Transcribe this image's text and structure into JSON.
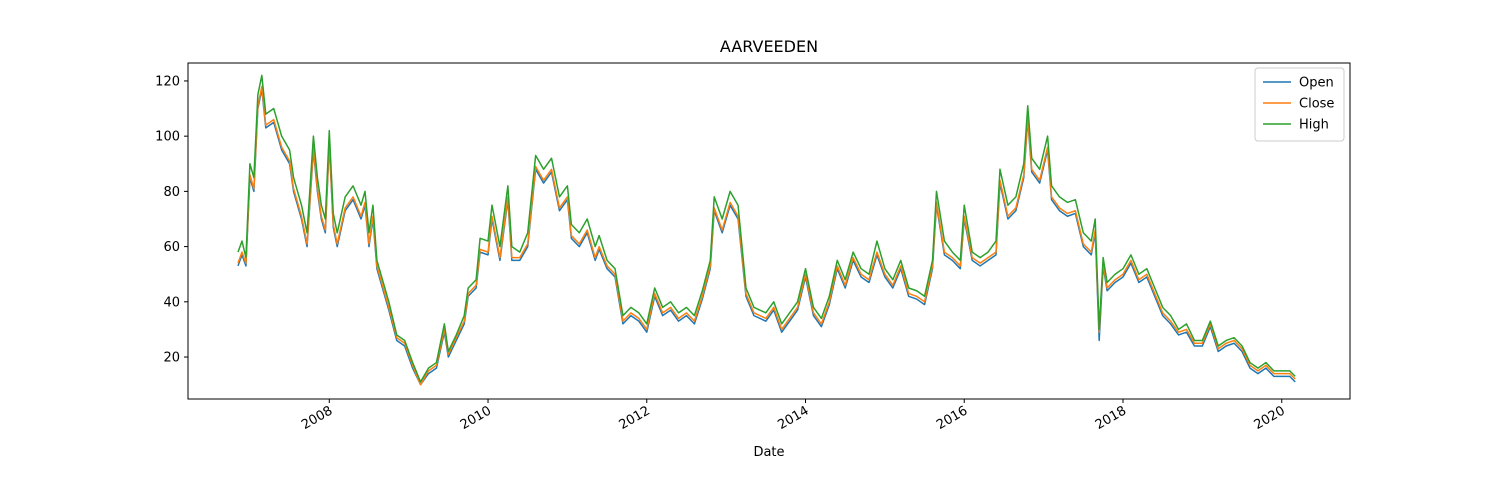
{
  "chart_data": {
    "type": "line",
    "title": "AARVEEDEN",
    "x_label": "Date",
    "x": [
      2006.85,
      2006.9,
      2006.95,
      2007.0,
      2007.05,
      2007.1,
      2007.15,
      2007.2,
      2007.3,
      2007.4,
      2007.5,
      2007.55,
      2007.65,
      2007.72,
      2007.8,
      2007.85,
      2007.9,
      2007.95,
      2008.0,
      2008.05,
      2008.1,
      2008.2,
      2008.3,
      2008.4,
      2008.45,
      2008.5,
      2008.55,
      2008.6,
      2008.65,
      2008.75,
      2008.85,
      2008.95,
      2009.05,
      2009.15,
      2009.25,
      2009.35,
      2009.45,
      2009.5,
      2009.6,
      2009.7,
      2009.75,
      2009.85,
      2009.9,
      2010.0,
      2010.05,
      2010.15,
      2010.25,
      2010.3,
      2010.4,
      2010.5,
      2010.6,
      2010.7,
      2010.8,
      2010.9,
      2011.0,
      2011.05,
      2011.15,
      2011.25,
      2011.35,
      2011.4,
      2011.5,
      2011.6,
      2011.7,
      2011.8,
      2011.9,
      2012.0,
      2012.1,
      2012.2,
      2012.3,
      2012.4,
      2012.5,
      2012.6,
      2012.7,
      2012.8,
      2012.85,
      2012.95,
      2013.05,
      2013.15,
      2013.25,
      2013.35,
      2013.5,
      2013.6,
      2013.7,
      2013.8,
      2013.9,
      2014.0,
      2014.1,
      2014.2,
      2014.3,
      2014.4,
      2014.5,
      2014.6,
      2014.7,
      2014.8,
      2014.9,
      2015.0,
      2015.1,
      2015.2,
      2015.3,
      2015.4,
      2015.5,
      2015.6,
      2015.65,
      2015.75,
      2015.85,
      2015.95,
      2016.0,
      2016.1,
      2016.2,
      2016.3,
      2016.4,
      2016.45,
      2016.55,
      2016.65,
      2016.75,
      2016.8,
      2016.85,
      2016.95,
      2017.05,
      2017.1,
      2017.2,
      2017.3,
      2017.4,
      2017.5,
      2017.6,
      2017.65,
      2017.7,
      2017.75,
      2017.8,
      2017.9,
      2018.0,
      2018.1,
      2018.2,
      2018.3,
      2018.4,
      2018.5,
      2018.6,
      2018.7,
      2018.8,
      2018.9,
      2019.0,
      2019.1,
      2019.2,
      2019.3,
      2019.4,
      2019.5,
      2019.6,
      2019.7,
      2019.8,
      2019.9,
      2020.0,
      2020.1,
      2020.17
    ],
    "series": [
      {
        "name": "Open",
        "color": "#1f77b4",
        "values": [
          53,
          57,
          53,
          85,
          80,
          110,
          117,
          103,
          105,
          95,
          90,
          80,
          70,
          60,
          95,
          80,
          70,
          65,
          97,
          67,
          60,
          73,
          77,
          70,
          75,
          60,
          70,
          52,
          47,
          37,
          26,
          24,
          16,
          10,
          14,
          16,
          29,
          20,
          26,
          32,
          42,
          45,
          58,
          57,
          70,
          55,
          77,
          55,
          55,
          60,
          88,
          83,
          87,
          73,
          77,
          63,
          60,
          65,
          55,
          59,
          52,
          49,
          32,
          35,
          33,
          29,
          42,
          35,
          37,
          33,
          35,
          32,
          41,
          52,
          73,
          65,
          75,
          70,
          42,
          35,
          33,
          37,
          29,
          33,
          37,
          49,
          35,
          31,
          39,
          52,
          45,
          55,
          49,
          47,
          57,
          49,
          45,
          52,
          42,
          41,
          39,
          52,
          75,
          57,
          55,
          52,
          70,
          55,
          53,
          55,
          57,
          83,
          70,
          73,
          85,
          106,
          87,
          83,
          95,
          77,
          73,
          71,
          72,
          60,
          57,
          65,
          26,
          53,
          44,
          47,
          49,
          54,
          47,
          49,
          42,
          35,
          32,
          28,
          29,
          24,
          24,
          31,
          22,
          24,
          25,
          22,
          16,
          14,
          16,
          13,
          13,
          13,
          11
        ]
      },
      {
        "name": "Close",
        "color": "#ff7f0e",
        "values": [
          54,
          58,
          54,
          86,
          81,
          111,
          118,
          104,
          106,
          96,
          91,
          81,
          71,
          61,
          96,
          81,
          71,
          66,
          98,
          68,
          61,
          74,
          78,
          71,
          76,
          61,
          71,
          53,
          48,
          38,
          27,
          25,
          17,
          10,
          15,
          17,
          30,
          21,
          27,
          33,
          43,
          46,
          59,
          58,
          71,
          56,
          78,
          56,
          56,
          61,
          89,
          84,
          88,
          74,
          78,
          64,
          61,
          66,
          56,
          60,
          53,
          50,
          33,
          36,
          34,
          30,
          43,
          36,
          38,
          34,
          36,
          33,
          42,
          53,
          74,
          66,
          76,
          71,
          43,
          36,
          34,
          38,
          30,
          34,
          38,
          50,
          36,
          32,
          40,
          53,
          46,
          56,
          50,
          48,
          58,
          50,
          46,
          53,
          43,
          42,
          40,
          53,
          76,
          58,
          56,
          53,
          71,
          56,
          54,
          56,
          58,
          84,
          71,
          74,
          86,
          107,
          88,
          84,
          96,
          78,
          74,
          72,
          73,
          61,
          58,
          66,
          29,
          54,
          45,
          48,
          50,
          55,
          48,
          50,
          43,
          36,
          33,
          29,
          30,
          25,
          25,
          32,
          23,
          25,
          26,
          23,
          17,
          15,
          17,
          14,
          14,
          14,
          12
        ]
      },
      {
        "name": "High",
        "color": "#2ca02c",
        "values": [
          58,
          62,
          56,
          90,
          85,
          115,
          122,
          108,
          110,
          100,
          95,
          85,
          75,
          65,
          100,
          85,
          75,
          70,
          102,
          72,
          65,
          78,
          82,
          75,
          80,
          65,
          75,
          55,
          50,
          40,
          28,
          26,
          18,
          11,
          16,
          18,
          32,
          22,
          28,
          35,
          45,
          48,
          63,
          62,
          75,
          60,
          82,
          60,
          58,
          65,
          93,
          88,
          92,
          78,
          82,
          68,
          65,
          70,
          60,
          64,
          55,
          52,
          35,
          38,
          36,
          32,
          45,
          38,
          40,
          36,
          38,
          35,
          44,
          55,
          78,
          70,
          80,
          75,
          45,
          38,
          36,
          40,
          32,
          36,
          40,
          52,
          38,
          34,
          42,
          55,
          48,
          58,
          52,
          50,
          62,
          52,
          48,
          55,
          45,
          44,
          42,
          55,
          80,
          62,
          58,
          55,
          75,
          58,
          56,
          58,
          62,
          88,
          75,
          78,
          90,
          111,
          92,
          88,
          100,
          82,
          78,
          76,
          77,
          65,
          62,
          70,
          30,
          56,
          47,
          50,
          52,
          57,
          50,
          52,
          45,
          38,
          35,
          30,
          32,
          26,
          26,
          33,
          24,
          26,
          27,
          24,
          18,
          16,
          18,
          15,
          15,
          15,
          13
        ]
      }
    ],
    "xlim": [
      2006.22,
      2020.86
    ],
    "xticks": [
      2008,
      2010,
      2012,
      2014,
      2016,
      2018,
      2020
    ],
    "ylim": [
      4.8,
      126.5
    ],
    "yticks": [
      20,
      40,
      60,
      80,
      100,
      120
    ],
    "legend": "upper right"
  }
}
